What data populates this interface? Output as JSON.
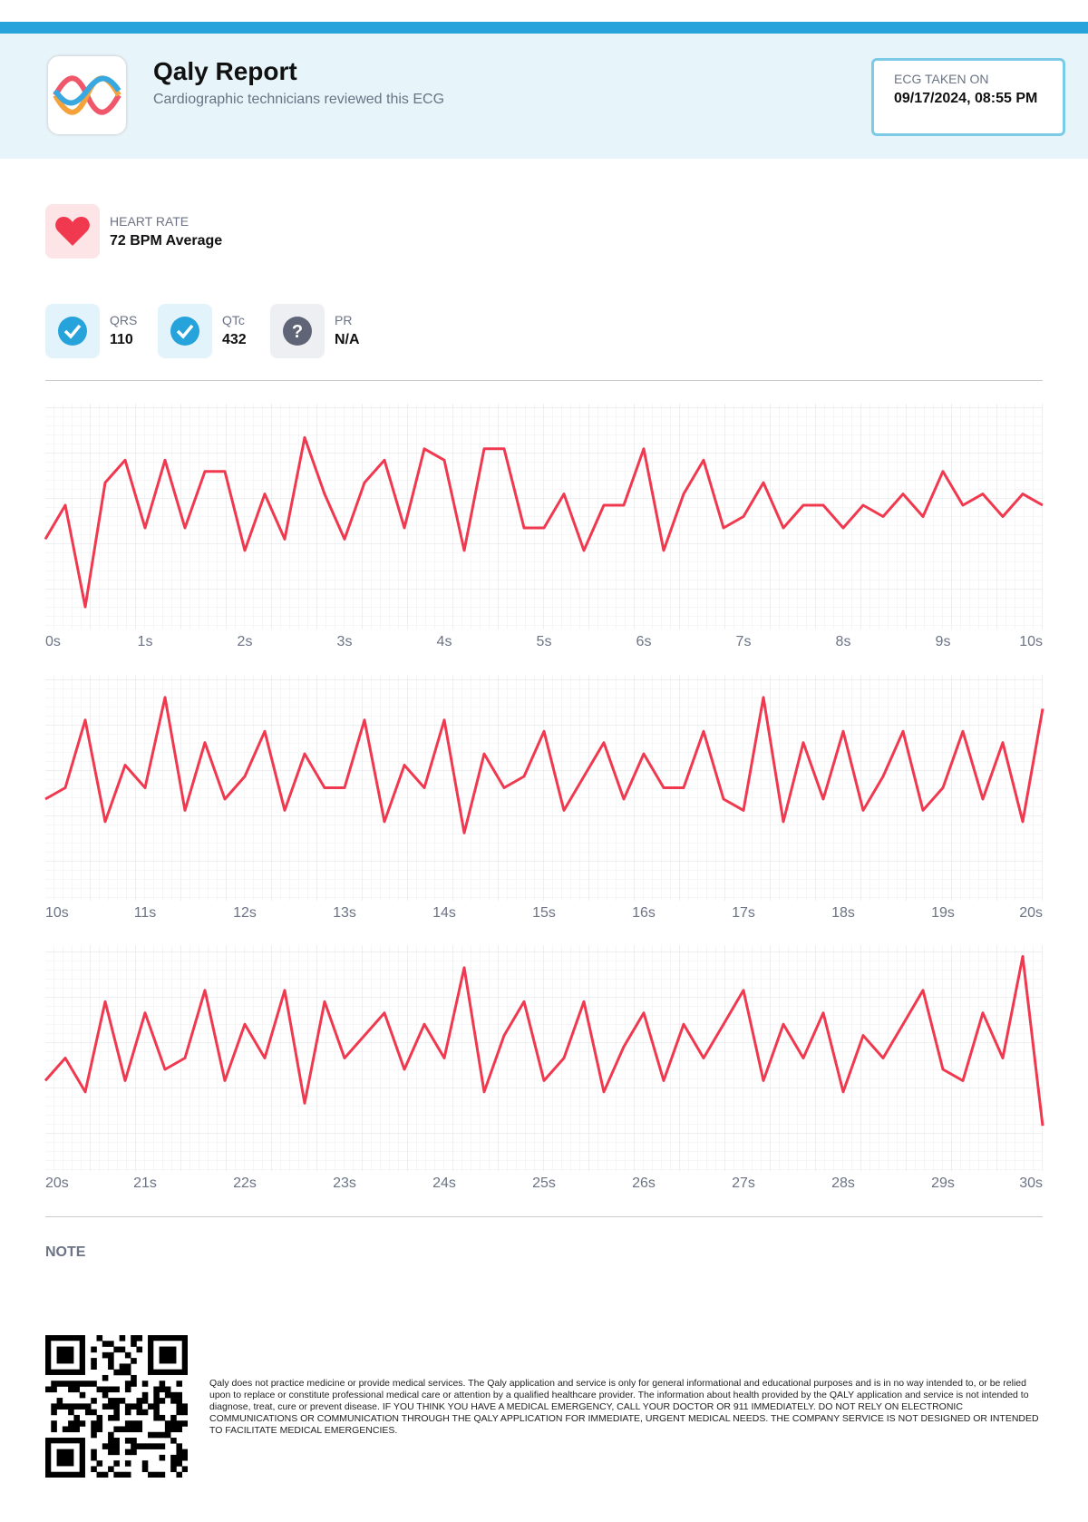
{
  "header": {
    "title": "Qaly Report",
    "subtitle": "Cardiographic technicians reviewed this ECG",
    "ecg_taken_label": "ECG TAKEN ON",
    "ecg_taken_value": "09/17/2024, 08:55 PM"
  },
  "heart_rate": {
    "label": "HEART RATE",
    "value": "72 BPM Average"
  },
  "intervals": [
    {
      "label": "QRS",
      "value": 110
    },
    {
      "label": "QTc",
      "value": 432
    },
    {
      "label": "PR",
      "value": "N/A"
    }
  ],
  "chart_data": [
    {
      "type": "line",
      "color": "#f0384f",
      "grid": true,
      "xlim": [
        0,
        10
      ],
      "ylim": [
        -1,
        1
      ],
      "xticks": [
        {
          "value": 0,
          "label": "0s"
        },
        {
          "value": 1,
          "label": "1s"
        },
        {
          "value": 2,
          "label": "2s"
        },
        {
          "value": 3,
          "label": "3s"
        },
        {
          "value": 4,
          "label": "4s"
        },
        {
          "value": 5,
          "label": "5s"
        },
        {
          "value": 6,
          "label": "6s"
        },
        {
          "value": 7,
          "label": "7s"
        },
        {
          "value": 8,
          "label": "8s"
        },
        {
          "value": 9,
          "label": "9s"
        },
        {
          "value": 10,
          "label": "10s"
        }
      ],
      "x": [
        0,
        0.2,
        0.4,
        0.6,
        0.8,
        1,
        1.2,
        1.4,
        1.6,
        1.8,
        2,
        2.2,
        2.4,
        2.6,
        2.8,
        3,
        3.2,
        3.4,
        3.6,
        3.8,
        4,
        4.2,
        4.4,
        4.6,
        4.8,
        5,
        5.2,
        5.4,
        5.6,
        5.8,
        6,
        6.2,
        6.4,
        6.6,
        6.8,
        7,
        7.2,
        7.4,
        7.6,
        7.8,
        8,
        8.2,
        8.4,
        8.6,
        8.8,
        9,
        9.2,
        9.4,
        9.6,
        9.8,
        10
      ],
      "values": [
        -0.2,
        0.1,
        -0.8,
        0.3,
        0.5,
        -0.1,
        0.5,
        -0.1,
        0.4,
        0.4,
        -0.3,
        0.2,
        -0.2,
        0.7,
        0.2,
        -0.2,
        0.3,
        0.5,
        -0.1,
        0.6,
        0.5,
        -0.3,
        0.6,
        0.6,
        -0.1,
        -0.1,
        0.2,
        -0.3,
        0.1,
        0.1,
        0.6,
        -0.3,
        0.2,
        0.5,
        -0.1,
        0.0,
        0.3,
        -0.1,
        0.1,
        0.1,
        -0.1,
        0.1,
        0.0,
        0.2,
        0.0,
        0.4,
        0.1,
        0.2,
        0.0,
        0.2,
        0.1
      ]
    },
    {
      "type": "line",
      "color": "#f0384f",
      "grid": true,
      "xlim": [
        10,
        20
      ],
      "ylim": [
        -1,
        1
      ],
      "xticks": [
        {
          "value": 10,
          "label": "10s"
        },
        {
          "value": 11,
          "label": "11s"
        },
        {
          "value": 12,
          "label": "12s"
        },
        {
          "value": 13,
          "label": "13s"
        },
        {
          "value": 14,
          "label": "14s"
        },
        {
          "value": 15,
          "label": "15s"
        },
        {
          "value": 16,
          "label": "16s"
        },
        {
          "value": 17,
          "label": "17s"
        },
        {
          "value": 18,
          "label": "18s"
        },
        {
          "value": 19,
          "label": "19s"
        },
        {
          "value": 20,
          "label": "20s"
        }
      ],
      "x": [
        10,
        10.2,
        10.4,
        10.6,
        10.8,
        11,
        11.2,
        11.4,
        11.6,
        11.8,
        12,
        12.2,
        12.4,
        12.6,
        12.8,
        13,
        13.2,
        13.4,
        13.6,
        13.8,
        14,
        14.2,
        14.4,
        14.6,
        14.8,
        15,
        15.2,
        15.4,
        15.6,
        15.8,
        16,
        16.2,
        16.4,
        16.6,
        16.8,
        17,
        17.2,
        17.4,
        17.6,
        17.8,
        18,
        18.2,
        18.4,
        18.6,
        18.8,
        19,
        19.2,
        19.4,
        19.6,
        19.8,
        20
      ],
      "values": [
        -0.1,
        0.0,
        0.6,
        -0.3,
        0.2,
        0.0,
        0.8,
        -0.2,
        0.4,
        -0.1,
        0.1,
        0.5,
        -0.2,
        0.3,
        0.0,
        0.0,
        0.6,
        -0.3,
        0.2,
        0.0,
        0.6,
        -0.4,
        0.3,
        0.0,
        0.1,
        0.5,
        -0.2,
        0.1,
        0.4,
        -0.1,
        0.3,
        0.0,
        0.0,
        0.5,
        -0.1,
        -0.2,
        0.8,
        -0.3,
        0.4,
        -0.1,
        0.5,
        -0.2,
        0.1,
        0.5,
        -0.2,
        0.0,
        0.5,
        -0.1,
        0.4,
        -0.3,
        0.7
      ]
    },
    {
      "type": "line",
      "color": "#f0384f",
      "grid": true,
      "xlim": [
        20,
        30
      ],
      "ylim": [
        -1,
        1
      ],
      "xticks": [
        {
          "value": 20,
          "label": "20s"
        },
        {
          "value": 21,
          "label": "21s"
        },
        {
          "value": 22,
          "label": "22s"
        },
        {
          "value": 23,
          "label": "23s"
        },
        {
          "value": 24,
          "label": "24s"
        },
        {
          "value": 25,
          "label": "25s"
        },
        {
          "value": 26,
          "label": "26s"
        },
        {
          "value": 27,
          "label": "27s"
        },
        {
          "value": 28,
          "label": "28s"
        },
        {
          "value": 29,
          "label": "29s"
        },
        {
          "value": 30,
          "label": "30s"
        }
      ],
      "x": [
        20,
        20.2,
        20.4,
        20.6,
        20.8,
        21,
        21.2,
        21.4,
        21.6,
        21.8,
        22,
        22.2,
        22.4,
        22.6,
        22.8,
        23,
        23.2,
        23.4,
        23.6,
        23.8,
        24,
        24.2,
        24.4,
        24.6,
        24.8,
        25,
        25.2,
        25.4,
        25.6,
        25.8,
        26,
        26.2,
        26.4,
        26.6,
        26.8,
        27,
        27.2,
        27.4,
        27.6,
        27.8,
        28,
        28.2,
        28.4,
        28.6,
        28.8,
        29,
        29.2,
        29.4,
        29.6,
        29.8,
        30
      ],
      "values": [
        -0.2,
        0.0,
        -0.3,
        0.5,
        -0.2,
        0.4,
        -0.1,
        0.0,
        0.6,
        -0.2,
        0.3,
        0.0,
        0.6,
        -0.4,
        0.5,
        0.0,
        0.2,
        0.4,
        -0.1,
        0.3,
        0.0,
        0.8,
        -0.3,
        0.2,
        0.5,
        -0.2,
        0.0,
        0.5,
        -0.3,
        0.1,
        0.4,
        -0.2,
        0.3,
        0.0,
        0.3,
        0.6,
        -0.2,
        0.3,
        0.0,
        0.4,
        -0.3,
        0.2,
        0.0,
        0.3,
        0.6,
        -0.1,
        -0.2,
        0.4,
        0.0,
        0.9,
        -0.6
      ]
    }
  ],
  "note": {
    "title": "NOTE"
  },
  "disclaimer": "Qaly does not practice medicine or provide medical services. The Qaly application and service is only for general informational and educational purposes and is in no way intended to, or be relied upon to replace or constitute professional medical care or attention by a qualified healthcare provider. The information about health provided by the QALY application and service is not intended to diagnose, treat, cure or prevent disease. IF YOU THINK YOU HAVE A MEDICAL EMERGENCY, CALL YOUR DOCTOR OR 911 IMMEDIATELY. DO NOT RELY ON ELECTRONIC COMMUNICATIONS OR COMMUNICATION THROUGH THE QALY APPLICATION FOR IMMEDIATE, URGENT MEDICAL NEEDS. THE COMPANY SERVICE IS NOT DESIGNED OR INTENDED TO FACILITATE MEDICAL EMERGENCIES."
}
